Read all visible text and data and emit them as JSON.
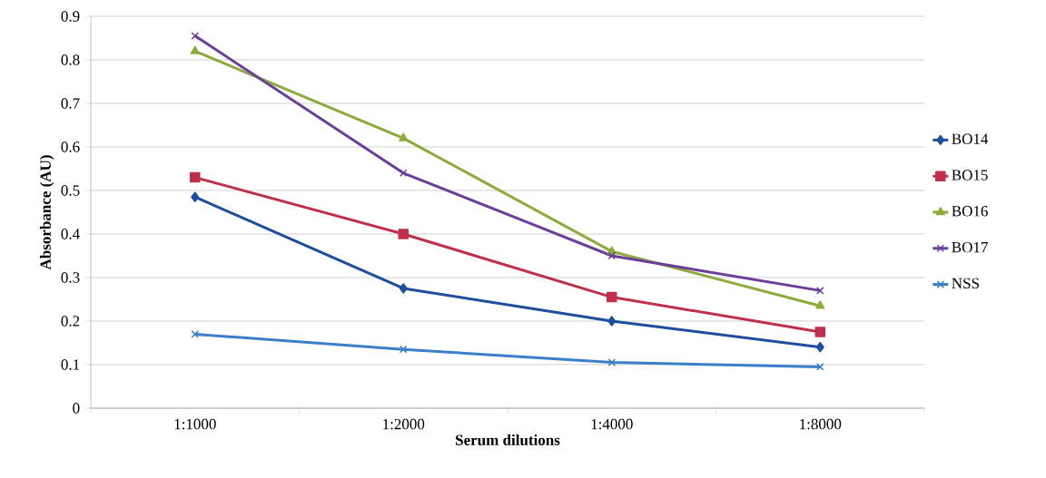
{
  "chart_data": {
    "type": "line",
    "xlabel": "Serum dilutions",
    "ylabel": "Absorbance (AU)",
    "categories": [
      "1:1000",
      "1:2000",
      "1:4000",
      "1:8000"
    ],
    "series": [
      {
        "name": "BO14",
        "color": "#1f4e9c",
        "marker": "diamond",
        "values": [
          0.485,
          0.275,
          0.2,
          0.14
        ]
      },
      {
        "name": "BO15",
        "color": "#c0304a",
        "marker": "square",
        "values": [
          0.53,
          0.4,
          0.255,
          0.175
        ]
      },
      {
        "name": "BO16",
        "color": "#8faa3c",
        "marker": "triangle",
        "values": [
          0.82,
          0.62,
          0.36,
          0.235
        ]
      },
      {
        "name": "BO17",
        "color": "#6a3f9a",
        "marker": "cross",
        "values": [
          0.855,
          0.54,
          0.35,
          0.27
        ]
      },
      {
        "name": "NSS",
        "color": "#3a7fc8",
        "marker": "cross",
        "values": [
          0.17,
          0.135,
          0.105,
          0.095
        ]
      }
    ],
    "ylim": [
      0,
      0.9
    ],
    "yticks": [
      0,
      0.1,
      0.2,
      0.3,
      0.4,
      0.5,
      0.6,
      0.7,
      0.8,
      0.9
    ],
    "grid": "y",
    "legend": "right",
    "line_style": "solid"
  }
}
